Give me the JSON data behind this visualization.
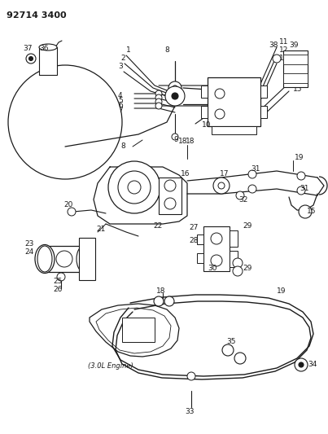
{
  "title": "92714 3400",
  "bg": "#ffffff",
  "lc": "#1a1a1a",
  "fig_w": 4.03,
  "fig_h": 5.33,
  "dpi": 100
}
